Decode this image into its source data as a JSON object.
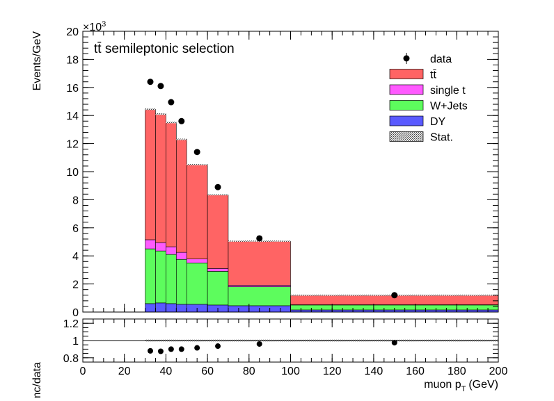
{
  "chart_data": [
    {
      "type": "bar",
      "stacked": true,
      "title": "tt̄ semileptonic selection",
      "ylabel": "Events/GeV",
      "y_exponent_label": "×10",
      "y_exponent_power": "3",
      "x_bin_edges": [
        30,
        35,
        40,
        45,
        50,
        60,
        70,
        100,
        200
      ],
      "xlim": [
        0,
        200
      ],
      "ylim": [
        0,
        20
      ],
      "y_ticks": [
        "0",
        "2",
        "4",
        "6",
        "8",
        "10",
        "12",
        "14",
        "16",
        "18",
        "20"
      ],
      "x_ticks": [
        "0",
        "20",
        "40",
        "60",
        "80",
        "100",
        "120",
        "140",
        "160",
        "180",
        "200"
      ],
      "series": [
        {
          "name": "DY",
          "color": "#5a5aff",
          "values": [
            0.6,
            0.65,
            0.6,
            0.55,
            0.55,
            0.5,
            0.45,
            0.15
          ]
        },
        {
          "name": "W+Jets",
          "color": "#5dfc5d",
          "values": [
            3.9,
            3.7,
            3.5,
            3.2,
            2.95,
            2.4,
            1.35,
            0.35
          ]
        },
        {
          "name": "single t",
          "color": "#ff5aff",
          "values": [
            0.65,
            0.6,
            0.55,
            0.5,
            0.28,
            0.2,
            0.1,
            0.02
          ]
        },
        {
          "name": "tt̄",
          "color": "#ff6464",
          "values": [
            9.3,
            9.15,
            8.85,
            8.05,
            6.72,
            5.25,
            3.15,
            0.68
          ]
        }
      ],
      "data_points": {
        "name": "data",
        "x": [
          32.5,
          37.5,
          42.5,
          47.5,
          55,
          65,
          85,
          150
        ],
        "y": [
          16.4,
          16.1,
          14.95,
          13.6,
          11.4,
          8.9,
          5.25,
          1.2
        ]
      },
      "stat_label": "Stat.",
      "legend": {
        "placement": "top-right",
        "entries": [
          "data",
          "tt̄",
          "single t",
          "W+Jets",
          "DY",
          "Stat."
        ]
      }
    },
    {
      "type": "scatter",
      "ylabel": "mc/data",
      "xlabel": "muon p",
      "xlabel_sub": "T",
      "xlabel_unit": "(GeV)",
      "xlim": [
        0,
        200
      ],
      "ylim": [
        0.75,
        1.25
      ],
      "y_ticks": [
        "0.8",
        "1",
        "1.2"
      ],
      "reference_line": 1,
      "x": [
        32.5,
        37.5,
        42.5,
        47.5,
        55,
        65,
        85,
        150
      ],
      "y": [
        0.88,
        0.875,
        0.9,
        0.9,
        0.915,
        0.935,
        0.96,
        0.975
      ]
    }
  ]
}
